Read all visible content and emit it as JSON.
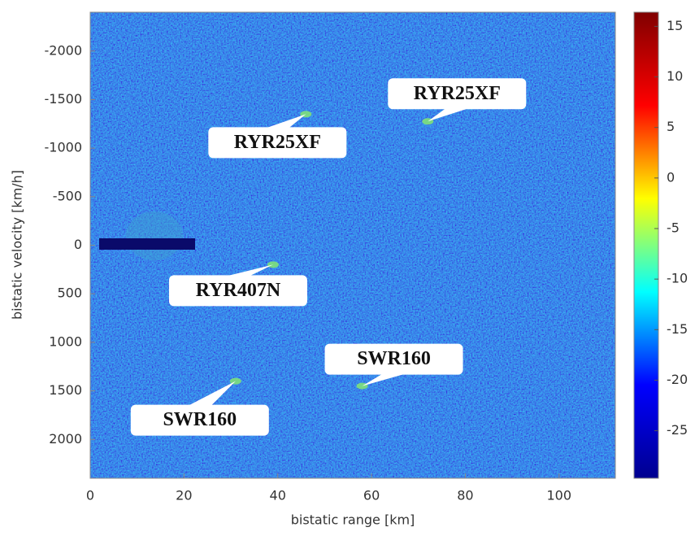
{
  "chart_data": {
    "type": "heatmap",
    "xlabel": "bistatic range [km]",
    "ylabel": "bistatic velocity [km/h]",
    "xlim": [
      0,
      112
    ],
    "xticks": [
      0,
      20,
      40,
      60,
      80,
      100
    ],
    "ylim": [
      -2400,
      2400
    ],
    "y_direction": "reverse",
    "yticks": [
      -2000,
      -1500,
      -1000,
      -500,
      0,
      500,
      1000,
      1500,
      2000
    ],
    "clim": [
      -29.7,
      16.4
    ],
    "cticks": [
      15,
      10,
      5,
      0,
      -5,
      -10,
      -15,
      -20,
      -25
    ],
    "colormap": [
      "#00008f",
      "#0000ff",
      "#00ffff",
      "#ffff00",
      "#ff0000",
      "#800000"
    ],
    "annotations": [
      {
        "text": "RYR25XF",
        "x": 72,
        "y": -1275
      },
      {
        "text": "RYR25XF",
        "x": 46,
        "y": -1350
      },
      {
        "text": "RYR407N",
        "x": 39,
        "y": 200
      },
      {
        "text": "SWR160",
        "x": 58,
        "y": 1450
      },
      {
        "text": "SWR160",
        "x": 31,
        "y": 1400
      }
    ]
  }
}
